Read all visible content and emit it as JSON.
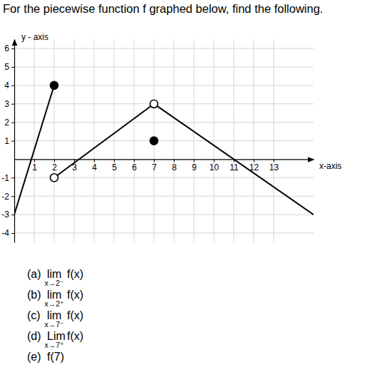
{
  "chart_data": {
    "type": "line",
    "title": "For the piecewise function f graphed below, find the following.",
    "x_label": "x-axis",
    "y_label": "y - axis",
    "xlim": [
      0,
      15
    ],
    "ylim": [
      -4.5,
      6.5
    ],
    "xticks": [
      1,
      2,
      3,
      4,
      5,
      6,
      7,
      8,
      9,
      10,
      11,
      12,
      13
    ],
    "yticks": [
      -4,
      -3,
      -2,
      -1,
      1,
      2,
      3,
      4,
      5,
      6
    ],
    "grid": true,
    "series": [
      {
        "type": "line",
        "color": "#000000",
        "x": [
          0,
          2
        ],
        "values": [
          -3,
          4
        ]
      },
      {
        "type": "line",
        "color": "#000000",
        "x": [
          2,
          7
        ],
        "values": [
          -1,
          3
        ]
      },
      {
        "type": "line",
        "color": "#000000",
        "x": [
          7,
          15
        ],
        "values": [
          3,
          -3
        ]
      },
      {
        "type": "scatter",
        "marker": "filled",
        "color": "#000000",
        "x": [
          2,
          7
        ],
        "values": [
          4,
          1
        ]
      },
      {
        "type": "scatter",
        "marker": "open",
        "color": "#000000",
        "x": [
          2,
          7
        ],
        "values": [
          -1,
          3
        ]
      }
    ],
    "annotations": [
      {
        "label": "(a)",
        "text": "lim",
        "sub": "x→2⁻",
        "expr": "f(x)"
      },
      {
        "label": "(b)",
        "text": "lim",
        "sub": "x→2⁺",
        "expr": "f(x)"
      },
      {
        "label": "(c)",
        "text": "lim",
        "sub": "x→7⁻",
        "expr": "f(x)"
      },
      {
        "label": "(d)",
        "text": "Lim",
        "sub": "x→7⁺",
        "expr": "f(x)"
      },
      {
        "label": "(e)",
        "expr": "f(7)"
      }
    ]
  }
}
